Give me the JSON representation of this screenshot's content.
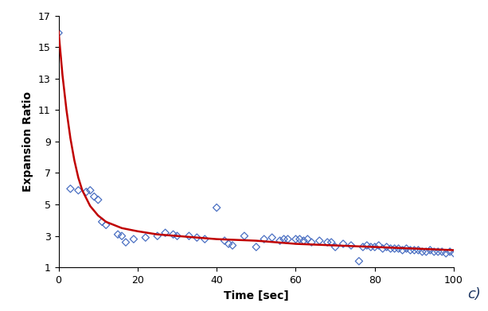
{
  "chart_data": {
    "type": "scatter",
    "x_label": "Time [sec]",
    "y_label": "Expansion Ratio",
    "panel_label": "c)",
    "xlim": [
      0,
      100
    ],
    "xticks": [
      0,
      20,
      40,
      60,
      80,
      100
    ],
    "ylim": [
      1,
      17
    ],
    "yticks": [
      1,
      3,
      5,
      7,
      9,
      11,
      13,
      15,
      17
    ],
    "grid": false,
    "series": [
      {
        "type": "scatter",
        "color": "#4a6fc2",
        "marker": "diamond",
        "x": [
          0,
          3,
          5,
          7,
          8,
          9,
          10,
          11,
          12,
          15,
          16,
          17,
          19,
          22,
          25,
          27,
          29,
          30,
          33,
          35,
          37,
          40,
          42,
          43,
          44,
          47,
          50,
          52,
          54,
          56,
          57,
          58,
          60,
          61,
          62,
          63,
          64,
          66,
          68,
          69,
          70,
          72,
          74,
          76,
          77,
          78,
          79,
          80,
          81,
          82,
          83,
          84,
          85,
          86,
          87,
          88,
          89,
          90,
          91,
          92,
          93,
          94,
          95,
          96,
          97,
          98,
          99,
          100
        ],
        "values": [
          15.9,
          6.0,
          5.9,
          5.8,
          5.9,
          5.5,
          5.3,
          3.9,
          3.7,
          3.1,
          3.0,
          2.6,
          2.8,
          2.9,
          3.0,
          3.2,
          3.1,
          3.0,
          3.0,
          2.9,
          2.8,
          4.8,
          2.7,
          2.5,
          2.4,
          3.0,
          2.3,
          2.8,
          2.9,
          2.7,
          2.8,
          2.8,
          2.8,
          2.8,
          2.7,
          2.8,
          2.6,
          2.7,
          2.6,
          2.6,
          2.3,
          2.5,
          2.4,
          1.4,
          2.3,
          2.4,
          2.3,
          2.3,
          2.4,
          2.2,
          2.3,
          2.2,
          2.2,
          2.2,
          2.1,
          2.2,
          2.1,
          2.1,
          2.1,
          2.0,
          2.0,
          2.1,
          2.0,
          2.0,
          2.0,
          1.9,
          2.0,
          1.9
        ]
      },
      {
        "type": "line",
        "color": "#c00000",
        "line_style": "solid",
        "x": [
          0,
          1,
          2,
          3,
          4,
          5,
          6,
          8,
          10,
          12,
          14,
          16,
          18,
          20,
          25,
          30,
          40,
          50,
          60,
          70,
          80,
          90,
          100
        ],
        "values": [
          16.0,
          13.2,
          11.0,
          9.2,
          7.8,
          6.7,
          5.9,
          4.9,
          4.3,
          3.9,
          3.7,
          3.5,
          3.4,
          3.3,
          3.1,
          3.0,
          2.8,
          2.7,
          2.5,
          2.4,
          2.3,
          2.2,
          2.1
        ]
      }
    ]
  }
}
